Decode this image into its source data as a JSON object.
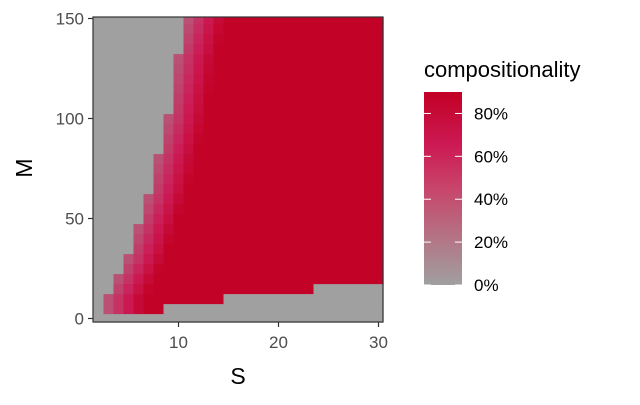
{
  "chart_data": {
    "type": "heatmap",
    "title": "",
    "xlabel": "S",
    "ylabel": "M",
    "x_range": [
      2,
      30
    ],
    "y_range": [
      0,
      150
    ],
    "x_ticks": [
      10,
      20,
      30
    ],
    "x_tick_labels": [
      "10",
      "20",
      "30"
    ],
    "y_ticks": [
      0,
      50,
      100,
      150
    ],
    "y_tick_labels": [
      "0",
      "50",
      "100",
      "150"
    ],
    "x_step": 1,
    "y_step": 5,
    "value_range": [
      0,
      0.9
    ],
    "color_scale": {
      "low": "#a0a0a0",
      "mid": "#cc1a55",
      "high": "#c20024"
    },
    "grid": false,
    "legend": {
      "title": "compositionality",
      "placement": "right",
      "breaks": [
        0,
        0.2,
        0.4,
        0.6,
        0.8
      ],
      "labels": [
        "0%",
        "20%",
        "40%",
        "60%",
        "80%"
      ]
    },
    "value_model": {
      "description_of_surface": "compositionality as a function of S (x) and M (y)",
      "zero_region_rule": "value is 0% where S is below the left boundary or M is below the bottom boundary",
      "left_boundary": [
        {
          "M": 10,
          "S": 3
        },
        {
          "M": 20,
          "S": 4
        },
        {
          "M": 30,
          "S": 5
        },
        {
          "M": 45,
          "S": 6
        },
        {
          "M": 60,
          "S": 7
        },
        {
          "M": 80,
          "S": 8
        },
        {
          "M": 100,
          "S": 9
        },
        {
          "M": 130,
          "S": 10
        },
        {
          "M": 150,
          "S": 11
        }
      ],
      "bottom_boundary": [
        {
          "S": 3,
          "M": 5
        },
        {
          "S": 8,
          "M": 5
        },
        {
          "S": 10,
          "M": 10
        },
        {
          "S": 14,
          "M": 10
        },
        {
          "S": 23,
          "M": 15
        },
        {
          "S": 30,
          "M": 20
        }
      ],
      "plateau_value": 0.88
    }
  }
}
